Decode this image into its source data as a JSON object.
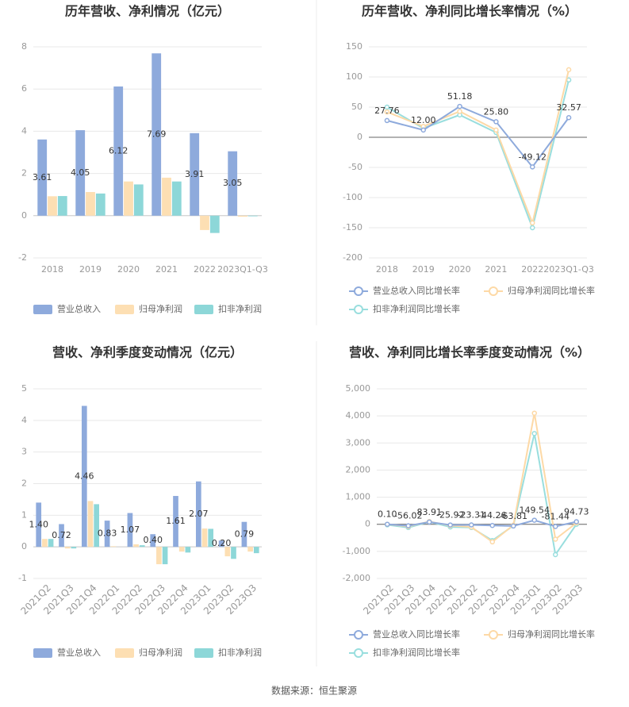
{
  "chart_data": [
    {
      "type": "bar",
      "title": "历年营收、净利情况（亿元）",
      "categories": [
        "2018",
        "2019",
        "2020",
        "2021",
        "2022",
        "2023Q1-Q3"
      ],
      "series": [
        {
          "name": "营业总收入",
          "color": "#8eaadc",
          "values": [
            3.61,
            4.05,
            6.12,
            7.69,
            3.91,
            3.05
          ],
          "value_labels": [
            "3.61",
            "4.05",
            "6.12",
            "7.69",
            "3.91",
            "3.05"
          ]
        },
        {
          "name": "归母净利润",
          "color": "#fddfb3",
          "values": [
            0.92,
            1.12,
            1.62,
            1.8,
            -0.68,
            -0.05
          ]
        },
        {
          "name": "扣非净利润",
          "color": "#8dd7d8",
          "values": [
            0.93,
            1.05,
            1.48,
            1.62,
            -0.82,
            -0.03
          ]
        }
      ],
      "ylim": [
        -2,
        8
      ],
      "yticks": [
        -2,
        0,
        2,
        4,
        6,
        8
      ],
      "grid": true
    },
    {
      "type": "line",
      "title": "历年营收、净利同比增长率情况（%）",
      "categories": [
        "2018",
        "2019",
        "2020",
        "2021",
        "2022",
        "2023Q1-Q3"
      ],
      "series": [
        {
          "name": "营业总收入同比增长率",
          "color": "#8eaadc",
          "values": [
            27.76,
            12.0,
            51.18,
            25.8,
            -49.12,
            32.57
          ],
          "value_labels": [
            "27.76",
            "12.00",
            "51.18",
            "25.80",
            "-49.12",
            "32.57"
          ]
        },
        {
          "name": "归母净利润同比增长率",
          "color": "#fdd9a6",
          "values": [
            42,
            18,
            43,
            12,
            -142,
            112
          ]
        },
        {
          "name": "扣非净利润同比增长率",
          "color": "#99dede",
          "values": [
            50,
            15,
            37,
            8,
            -150,
            95
          ]
        }
      ],
      "ylim": [
        -200,
        150
      ],
      "yticks": [
        -200,
        -150,
        -100,
        -50,
        0,
        50,
        100,
        150
      ],
      "grid": true
    },
    {
      "type": "bar",
      "title": "营收、净利季度变动情况（亿元）",
      "categories": [
        "2021Q2",
        "2021Q3",
        "2021Q4",
        "2022Q1",
        "2022Q2",
        "2022Q3",
        "2022Q4",
        "2023Q1",
        "2023Q2",
        "2023Q3"
      ],
      "series": [
        {
          "name": "营业总收入",
          "color": "#8eaadc",
          "values": [
            1.4,
            0.72,
            4.46,
            0.83,
            1.07,
            0.4,
            1.61,
            2.07,
            0.2,
            0.79
          ],
          "value_labels": [
            "1.40",
            "0.72",
            "4.46",
            "0.83",
            "1.07",
            "0.40",
            "1.61",
            "2.07",
            "0.20",
            "0.79"
          ]
        },
        {
          "name": "归母净利润",
          "color": "#fddfb3",
          "values": [
            0.25,
            -0.05,
            1.45,
            0.02,
            0.08,
            -0.55,
            -0.15,
            0.58,
            -0.3,
            -0.15
          ]
        },
        {
          "name": "扣非净利润",
          "color": "#8dd7d8",
          "values": [
            0.25,
            -0.05,
            1.35,
            0.0,
            0.05,
            -0.55,
            -0.18,
            0.57,
            -0.38,
            -0.2
          ]
        }
      ],
      "ylim": [
        -1,
        5
      ],
      "yticks": [
        -1,
        0,
        1,
        2,
        3,
        4,
        5
      ],
      "grid": true
    },
    {
      "type": "line",
      "title": "营收、净利同比增长率季度变动情况（%）",
      "categories": [
        "2021Q2",
        "2021Q3",
        "2021Q4",
        "2022Q1",
        "2022Q2",
        "2022Q3",
        "2022Q4",
        "2023Q1",
        "2023Q2",
        "2023Q3"
      ],
      "series": [
        {
          "name": "营业总收入同比增长率",
          "color": "#8eaadc",
          "values": [
            0.1,
            -56.02,
            83.91,
            -25.92,
            -23.31,
            -44.26,
            -63.81,
            149.54,
            -81.44,
            94.73
          ],
          "value_labels": [
            "0.10",
            "-56.02",
            "83.91",
            "-25.92",
            "-23.31",
            "-44.26",
            "-63.81",
            "149.54",
            "-81.44",
            "94.73"
          ]
        },
        {
          "name": "归母净利润同比增长率",
          "color": "#fdd9a6",
          "values": [
            0,
            -80,
            100,
            -50,
            -100,
            -650,
            -30,
            4100,
            -550,
            50
          ]
        },
        {
          "name": "扣非净利润同比增长率",
          "color": "#99dede",
          "values": [
            -20,
            -120,
            90,
            -100,
            -120,
            -600,
            -50,
            3350,
            -1120,
            0
          ]
        }
      ],
      "ylim": [
        -2000,
        5000
      ],
      "yticks": [
        {
          "value": -2000,
          "label": "-2,000"
        },
        {
          "value": -1000,
          "label": "-1,000"
        },
        0,
        {
          "value": 1000,
          "label": "1,000"
        },
        {
          "value": 2000,
          "label": "2,000"
        },
        {
          "value": 3000,
          "label": "3,000"
        },
        {
          "value": 4000,
          "label": "4,000"
        },
        {
          "value": 5000,
          "label": "5,000"
        }
      ],
      "grid": true
    }
  ],
  "source": "数据来源：恒生聚源"
}
